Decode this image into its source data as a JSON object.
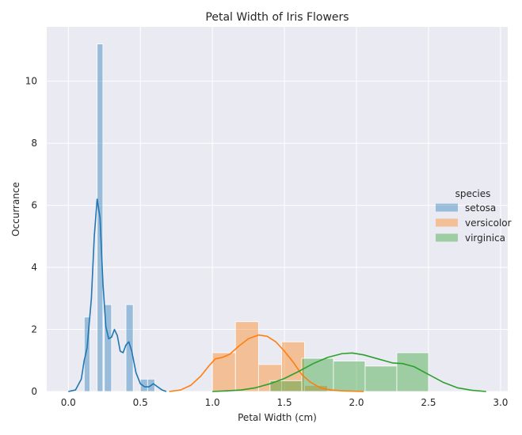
{
  "chart_data": {
    "type": "histogram",
    "title": "Petal Width of Iris Flowers",
    "xlabel": "Petal Width (cm)",
    "ylabel": "Occurrance",
    "xlim": [
      -0.15,
      3.05
    ],
    "ylim": [
      0,
      11.75
    ],
    "xticks": [
      "0.0",
      "0.5",
      "1.0",
      "1.5",
      "2.0",
      "2.5",
      "3.0"
    ],
    "xtick_values": [
      0,
      0.5,
      1.0,
      1.5,
      2.0,
      2.5,
      3.0
    ],
    "yticks": [
      "0",
      "2",
      "4",
      "6",
      "8",
      "10"
    ],
    "ytick_values": [
      0,
      2,
      4,
      6,
      8,
      10
    ],
    "grid": true,
    "legend": {
      "title": "species",
      "placement": "center-right",
      "entries": [
        "setosa",
        "versicolor",
        "virginica"
      ]
    },
    "series": [
      {
        "name": "setosa",
        "color": "#1f77b4",
        "bins": [
          {
            "x0": 0.11,
            "x1": 0.15,
            "y": 2.4
          },
          {
            "x0": 0.2,
            "x1": 0.24,
            "y": 11.2
          },
          {
            "x0": 0.25,
            "x1": 0.3,
            "y": 2.8
          },
          {
            "x0": 0.4,
            "x1": 0.45,
            "y": 2.8
          },
          {
            "x0": 0.5,
            "x1": 0.55,
            "y": 0.4
          },
          {
            "x0": 0.55,
            "x1": 0.6,
            "y": 0.4
          }
        ],
        "kde": [
          [
            0.0,
            0.0
          ],
          [
            0.05,
            0.05
          ],
          [
            0.09,
            0.4
          ],
          [
            0.11,
            1.0
          ],
          [
            0.13,
            1.4
          ],
          [
            0.16,
            3.0
          ],
          [
            0.18,
            5.0
          ],
          [
            0.2,
            6.2
          ],
          [
            0.22,
            5.6
          ],
          [
            0.24,
            3.5
          ],
          [
            0.26,
            2.1
          ],
          [
            0.28,
            1.7
          ],
          [
            0.3,
            1.75
          ],
          [
            0.32,
            2.0
          ],
          [
            0.34,
            1.8
          ],
          [
            0.36,
            1.3
          ],
          [
            0.38,
            1.25
          ],
          [
            0.4,
            1.5
          ],
          [
            0.42,
            1.6
          ],
          [
            0.44,
            1.3
          ],
          [
            0.47,
            0.6
          ],
          [
            0.5,
            0.25
          ],
          [
            0.53,
            0.15
          ],
          [
            0.56,
            0.15
          ],
          [
            0.59,
            0.25
          ],
          [
            0.62,
            0.15
          ],
          [
            0.65,
            0.05
          ],
          [
            0.68,
            0.0
          ]
        ]
      },
      {
        "name": "versicolor",
        "color": "#ff7f0e",
        "bins": [
          {
            "x0": 1.0,
            "x1": 1.16,
            "y": 1.25
          },
          {
            "x0": 1.16,
            "x1": 1.32,
            "y": 2.25
          },
          {
            "x0": 1.32,
            "x1": 1.48,
            "y": 0.87
          },
          {
            "x0": 1.48,
            "x1": 1.64,
            "y": 1.6
          },
          {
            "x0": 1.64,
            "x1": 1.8,
            "y": 0.2
          }
        ],
        "kde": [
          [
            0.7,
            0.0
          ],
          [
            0.78,
            0.05
          ],
          [
            0.85,
            0.2
          ],
          [
            0.92,
            0.5
          ],
          [
            0.98,
            0.85
          ],
          [
            1.02,
            1.05
          ],
          [
            1.07,
            1.1
          ],
          [
            1.12,
            1.2
          ],
          [
            1.18,
            1.45
          ],
          [
            1.25,
            1.7
          ],
          [
            1.32,
            1.82
          ],
          [
            1.38,
            1.78
          ],
          [
            1.44,
            1.6
          ],
          [
            1.5,
            1.3
          ],
          [
            1.56,
            0.95
          ],
          [
            1.62,
            0.55
          ],
          [
            1.68,
            0.3
          ],
          [
            1.75,
            0.12
          ],
          [
            1.82,
            0.05
          ],
          [
            1.9,
            0.02
          ],
          [
            2.05,
            0.0
          ]
        ]
      },
      {
        "name": "virginica",
        "color": "#2ca02c",
        "bins": [
          {
            "x0": 1.4,
            "x1": 1.62,
            "y": 0.35
          },
          {
            "x0": 1.62,
            "x1": 1.84,
            "y": 1.07
          },
          {
            "x0": 1.84,
            "x1": 2.06,
            "y": 0.98
          },
          {
            "x0": 2.06,
            "x1": 2.28,
            "y": 0.82
          },
          {
            "x0": 2.28,
            "x1": 2.5,
            "y": 1.25
          }
        ],
        "kde": [
          [
            1.0,
            0.0
          ],
          [
            1.1,
            0.02
          ],
          [
            1.2,
            0.05
          ],
          [
            1.3,
            0.12
          ],
          [
            1.4,
            0.25
          ],
          [
            1.5,
            0.42
          ],
          [
            1.6,
            0.65
          ],
          [
            1.7,
            0.9
          ],
          [
            1.8,
            1.1
          ],
          [
            1.9,
            1.22
          ],
          [
            1.97,
            1.24
          ],
          [
            2.05,
            1.18
          ],
          [
            2.15,
            1.05
          ],
          [
            2.25,
            0.92
          ],
          [
            2.32,
            0.9
          ],
          [
            2.4,
            0.8
          ],
          [
            2.5,
            0.55
          ],
          [
            2.6,
            0.3
          ],
          [
            2.7,
            0.12
          ],
          [
            2.8,
            0.04
          ],
          [
            2.9,
            0.0
          ]
        ]
      }
    ]
  }
}
